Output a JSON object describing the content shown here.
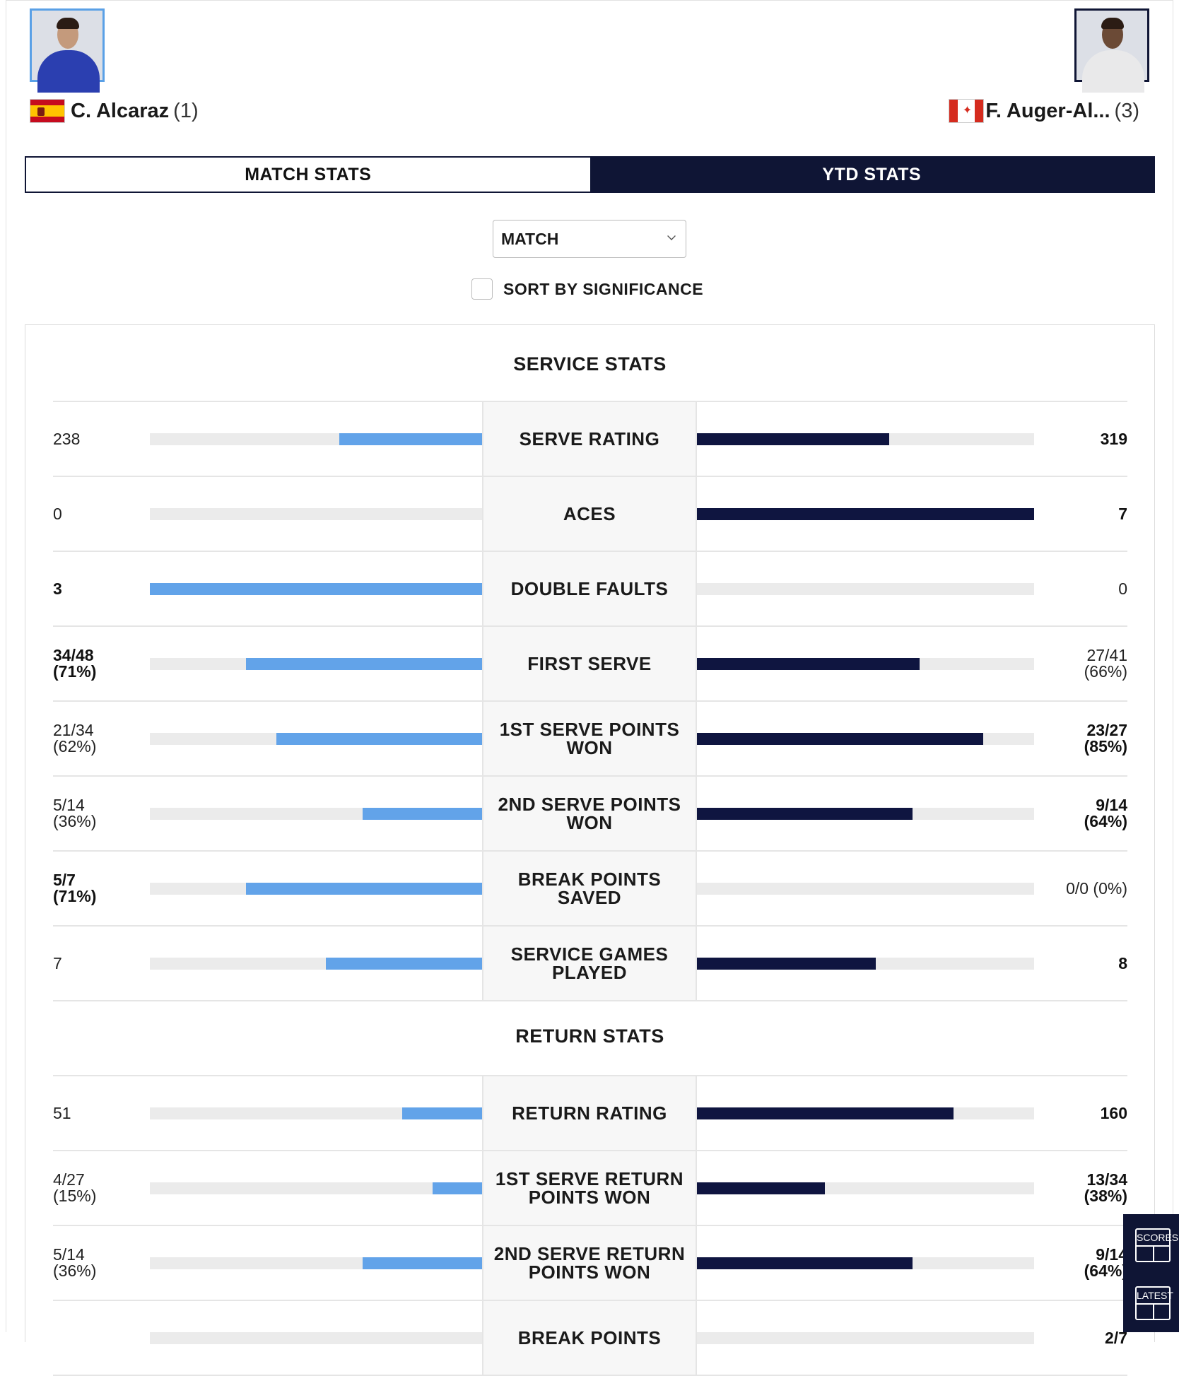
{
  "players": {
    "left": {
      "name": "C. Alcaraz",
      "seed": "(1)",
      "flag": "spain-flag-icon"
    },
    "right": {
      "name": "F. Auger-Al...",
      "seed": "(3)",
      "flag": "canada-flag-icon"
    }
  },
  "tabs": [
    {
      "label": "MATCH STATS",
      "active": false
    },
    {
      "label": "YTD STATS",
      "active": true
    }
  ],
  "filter": {
    "selected": "MATCH"
  },
  "sort": {
    "label": "SORT BY SIGNIFICANCE",
    "checked": false
  },
  "colors": {
    "left_bar": "#62a3e9",
    "right_bar": "#0f1540",
    "track": "#ebebeb",
    "navy": "#0f1535"
  },
  "service": {
    "title": "SERVICE STATS",
    "rows": [
      {
        "label": "SERVE RATING",
        "left": [
          "238"
        ],
        "right": [
          "319"
        ],
        "left_bold": false,
        "right_bold": true,
        "left_pct": 43,
        "right_pct": 57
      },
      {
        "label": "ACES",
        "left": [
          "0"
        ],
        "right": [
          "7"
        ],
        "left_bold": false,
        "right_bold": true,
        "left_pct": 0,
        "right_pct": 100
      },
      {
        "label": "DOUBLE FAULTS",
        "left": [
          "3"
        ],
        "right": [
          "0"
        ],
        "left_bold": true,
        "right_bold": false,
        "left_pct": 100,
        "right_pct": 0
      },
      {
        "label": "FIRST SERVE",
        "left": [
          "34/48",
          "(71%)"
        ],
        "right": [
          "27/41",
          "(66%)"
        ],
        "left_bold": true,
        "right_bold": false,
        "left_pct": 71,
        "right_pct": 66
      },
      {
        "label": "1ST SERVE POINTS WON",
        "left": [
          "21/34",
          "(62%)"
        ],
        "right": [
          "23/27",
          "(85%)"
        ],
        "left_bold": false,
        "right_bold": true,
        "left_pct": 62,
        "right_pct": 85
      },
      {
        "label": "2ND SERVE POINTS WON",
        "left": [
          "5/14",
          "(36%)"
        ],
        "right": [
          "9/14",
          "(64%)"
        ],
        "left_bold": false,
        "right_bold": true,
        "left_pct": 36,
        "right_pct": 64
      },
      {
        "label": "BREAK POINTS SAVED",
        "left": [
          "5/7",
          "(71%)"
        ],
        "right": [
          "0/0 (0%)"
        ],
        "left_bold": true,
        "right_bold": false,
        "left_pct": 71,
        "right_pct": 0
      },
      {
        "label": "SERVICE GAMES PLAYED",
        "left": [
          "7"
        ],
        "right": [
          "8"
        ],
        "left_bold": false,
        "right_bold": true,
        "left_pct": 47,
        "right_pct": 53
      }
    ]
  },
  "return": {
    "title": "RETURN STATS",
    "rows": [
      {
        "label": "RETURN RATING",
        "left": [
          "51"
        ],
        "right": [
          "160"
        ],
        "left_bold": false,
        "right_bold": true,
        "left_pct": 24,
        "right_pct": 76
      },
      {
        "label": "1ST SERVE RETURN POINTS WON",
        "left": [
          "4/27",
          "(15%)"
        ],
        "right": [
          "13/34",
          "(38%)"
        ],
        "left_bold": false,
        "right_bold": true,
        "left_pct": 15,
        "right_pct": 38
      },
      {
        "label": "2ND SERVE RETURN POINTS WON",
        "left": [
          "5/14",
          "(36%)"
        ],
        "right": [
          "9/14",
          "(64%)"
        ],
        "left_bold": false,
        "right_bold": true,
        "left_pct": 36,
        "right_pct": 64
      },
      {
        "label": "BREAK POINTS",
        "left": [
          ""
        ],
        "right": [
          "2/7"
        ],
        "left_bold": false,
        "right_bold": true,
        "left_pct": 0,
        "right_pct": 0
      }
    ]
  },
  "side_widget": {
    "scores_label": "SCORES",
    "latest_label": "LATEST"
  }
}
